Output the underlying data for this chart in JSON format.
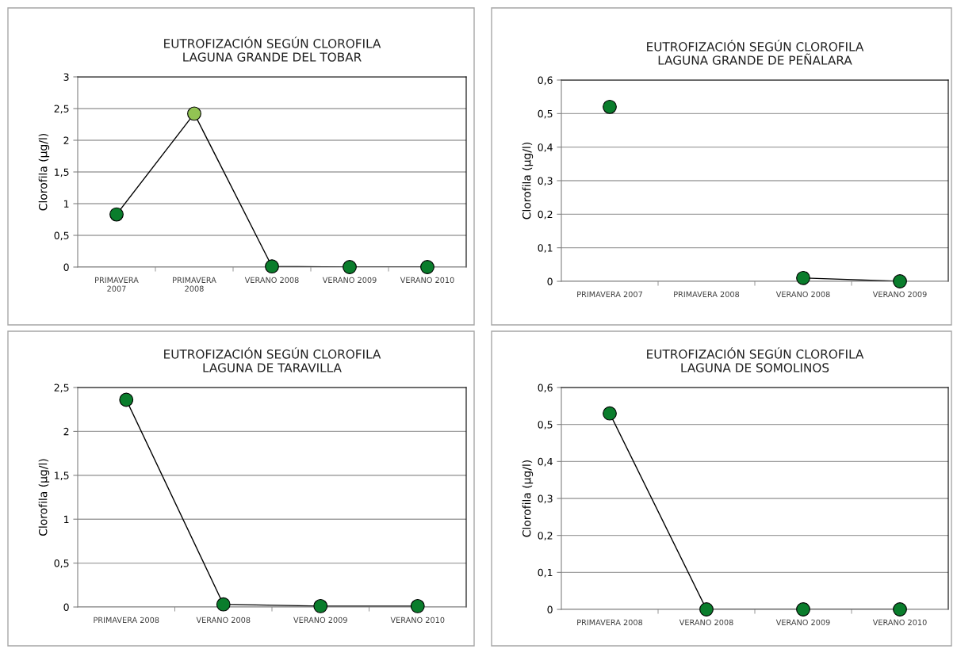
{
  "chart_data": [
    {
      "type": "line",
      "title": "EUTROFIZACIÓN SEGÚN CLOROFILA\nLAGUNA GRANDE DEL TOBAR",
      "ylabel": "Clorofila (µg/l)",
      "categories": [
        "PRIMAVERA\n2007",
        "PRIMAVERA\n2008",
        "VERANO 2008",
        "VERANO 2009",
        "VERANO 2010"
      ],
      "series": [
        {
          "values": [
            0.83,
            2.42,
            0.01,
            0,
            0
          ],
          "colors": [
            "#0a7d2c",
            "#92c353",
            "#0a7d2c",
            "#0a7d2c",
            "#0a7d2c"
          ]
        }
      ],
      "ylim": [
        0,
        3
      ],
      "yticks": [
        0,
        {
          "value": 0.5,
          "label": "0,5"
        },
        1,
        {
          "value": 1.5,
          "label": "1,5"
        },
        2,
        {
          "value": 2.5,
          "label": "2,5"
        },
        3
      ],
      "grid": "y",
      "marker": "circle",
      "line_style": "solid"
    },
    {
      "type": "line",
      "title": "EUTROFIZACIÓN SEGÚN CLOROFILA\nLAGUNA GRANDE DE PEÑALARA",
      "ylabel": "Clorofila (µg/l)",
      "categories": [
        "PRIMAVERA 2007",
        "PRIMAVERA 2008",
        "VERANO 2008",
        "VERANO 2009"
      ],
      "series": [
        {
          "values": [
            0.52,
            null,
            0.01,
            0
          ],
          "colors": [
            "#0a7d2c",
            "#0a7d2c",
            "#0a7d2c",
            "#0a7d2c"
          ]
        }
      ],
      "ylim": [
        0,
        0.6
      ],
      "yticks": [
        0,
        {
          "value": 0.1,
          "label": "0,1"
        },
        {
          "value": 0.2,
          "label": "0,2"
        },
        {
          "value": 0.3,
          "label": "0,3"
        },
        {
          "value": 0.4,
          "label": "0,4"
        },
        {
          "value": 0.5,
          "label": "0,5"
        },
        {
          "value": 0.6,
          "label": "0,6"
        }
      ],
      "grid": "y",
      "marker": "circle",
      "line_style": "solid"
    },
    {
      "type": "line",
      "title": "EUTROFIZACIÓN SEGÚN CLOROFILA\nLAGUNA DE TARAVILLA",
      "ylabel": "Clorofila (µg/l)",
      "categories": [
        "PRIMAVERA 2008",
        "VERANO 2008",
        "VERANO 2009",
        "VERANO 2010"
      ],
      "series": [
        {
          "values": [
            2.36,
            0.03,
            0.01,
            0.01
          ],
          "colors": [
            "#0a7d2c",
            "#0a7d2c",
            "#0a7d2c",
            "#0a7d2c"
          ]
        }
      ],
      "ylim": [
        0,
        2.5
      ],
      "yticks": [
        0,
        {
          "value": 0.5,
          "label": "0,5"
        },
        1,
        {
          "value": 1.5,
          "label": "1,5"
        },
        2,
        {
          "value": 2.5,
          "label": "2,5"
        }
      ],
      "grid": "y",
      "marker": "circle",
      "line_style": "solid"
    },
    {
      "type": "line",
      "title": "EUTROFIZACIÓN SEGÚN CLOROFILA\nLAGUNA DE SOMOLINOS",
      "ylabel": "Clorofila (µg/l)",
      "categories": [
        "PRIMAVERA 2008",
        "VERANO 2008",
        "VERANO 2009",
        "VERANO 2010"
      ],
      "series": [
        {
          "values": [
            0.53,
            0,
            0,
            0
          ],
          "colors": [
            "#0a7d2c",
            "#0a7d2c",
            "#0a7d2c",
            "#0a7d2c"
          ]
        }
      ],
      "ylim": [
        0,
        0.6
      ],
      "yticks": [
        0,
        {
          "value": 0.1,
          "label": "0,1"
        },
        {
          "value": 0.2,
          "label": "0,2"
        },
        {
          "value": 0.3,
          "label": "0,3"
        },
        {
          "value": 0.4,
          "label": "0,4"
        },
        {
          "value": 0.5,
          "label": "0,5"
        },
        {
          "value": 0.6,
          "label": "0,6"
        }
      ],
      "grid": "y",
      "marker": "circle",
      "line_style": "solid"
    }
  ]
}
